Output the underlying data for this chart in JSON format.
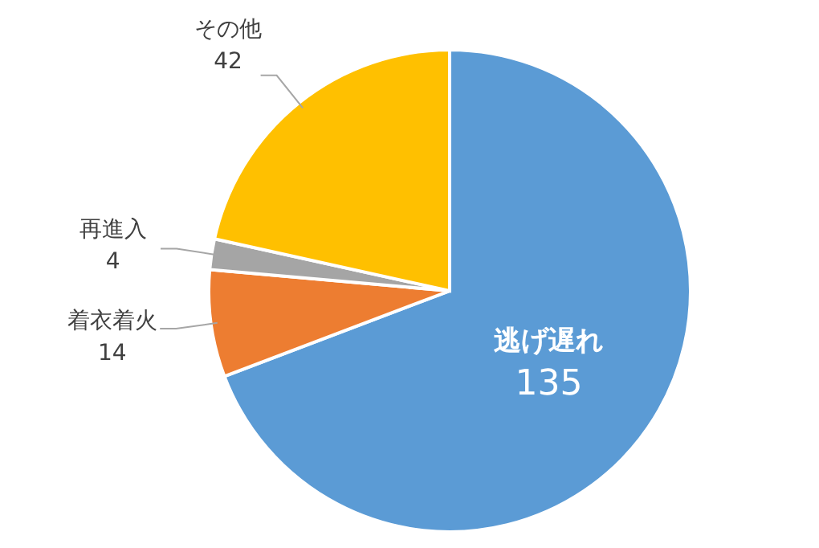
{
  "chart_data": {
    "type": "pie",
    "categories": [
      "逃げ遅れ",
      "着衣着火",
      "再進入",
      "その他"
    ],
    "values": [
      135,
      14,
      4,
      42
    ],
    "colors": [
      "#5b9bd5",
      "#ed7d31",
      "#a5a5a5",
      "#ffc000"
    ],
    "data_labels": true
  }
}
